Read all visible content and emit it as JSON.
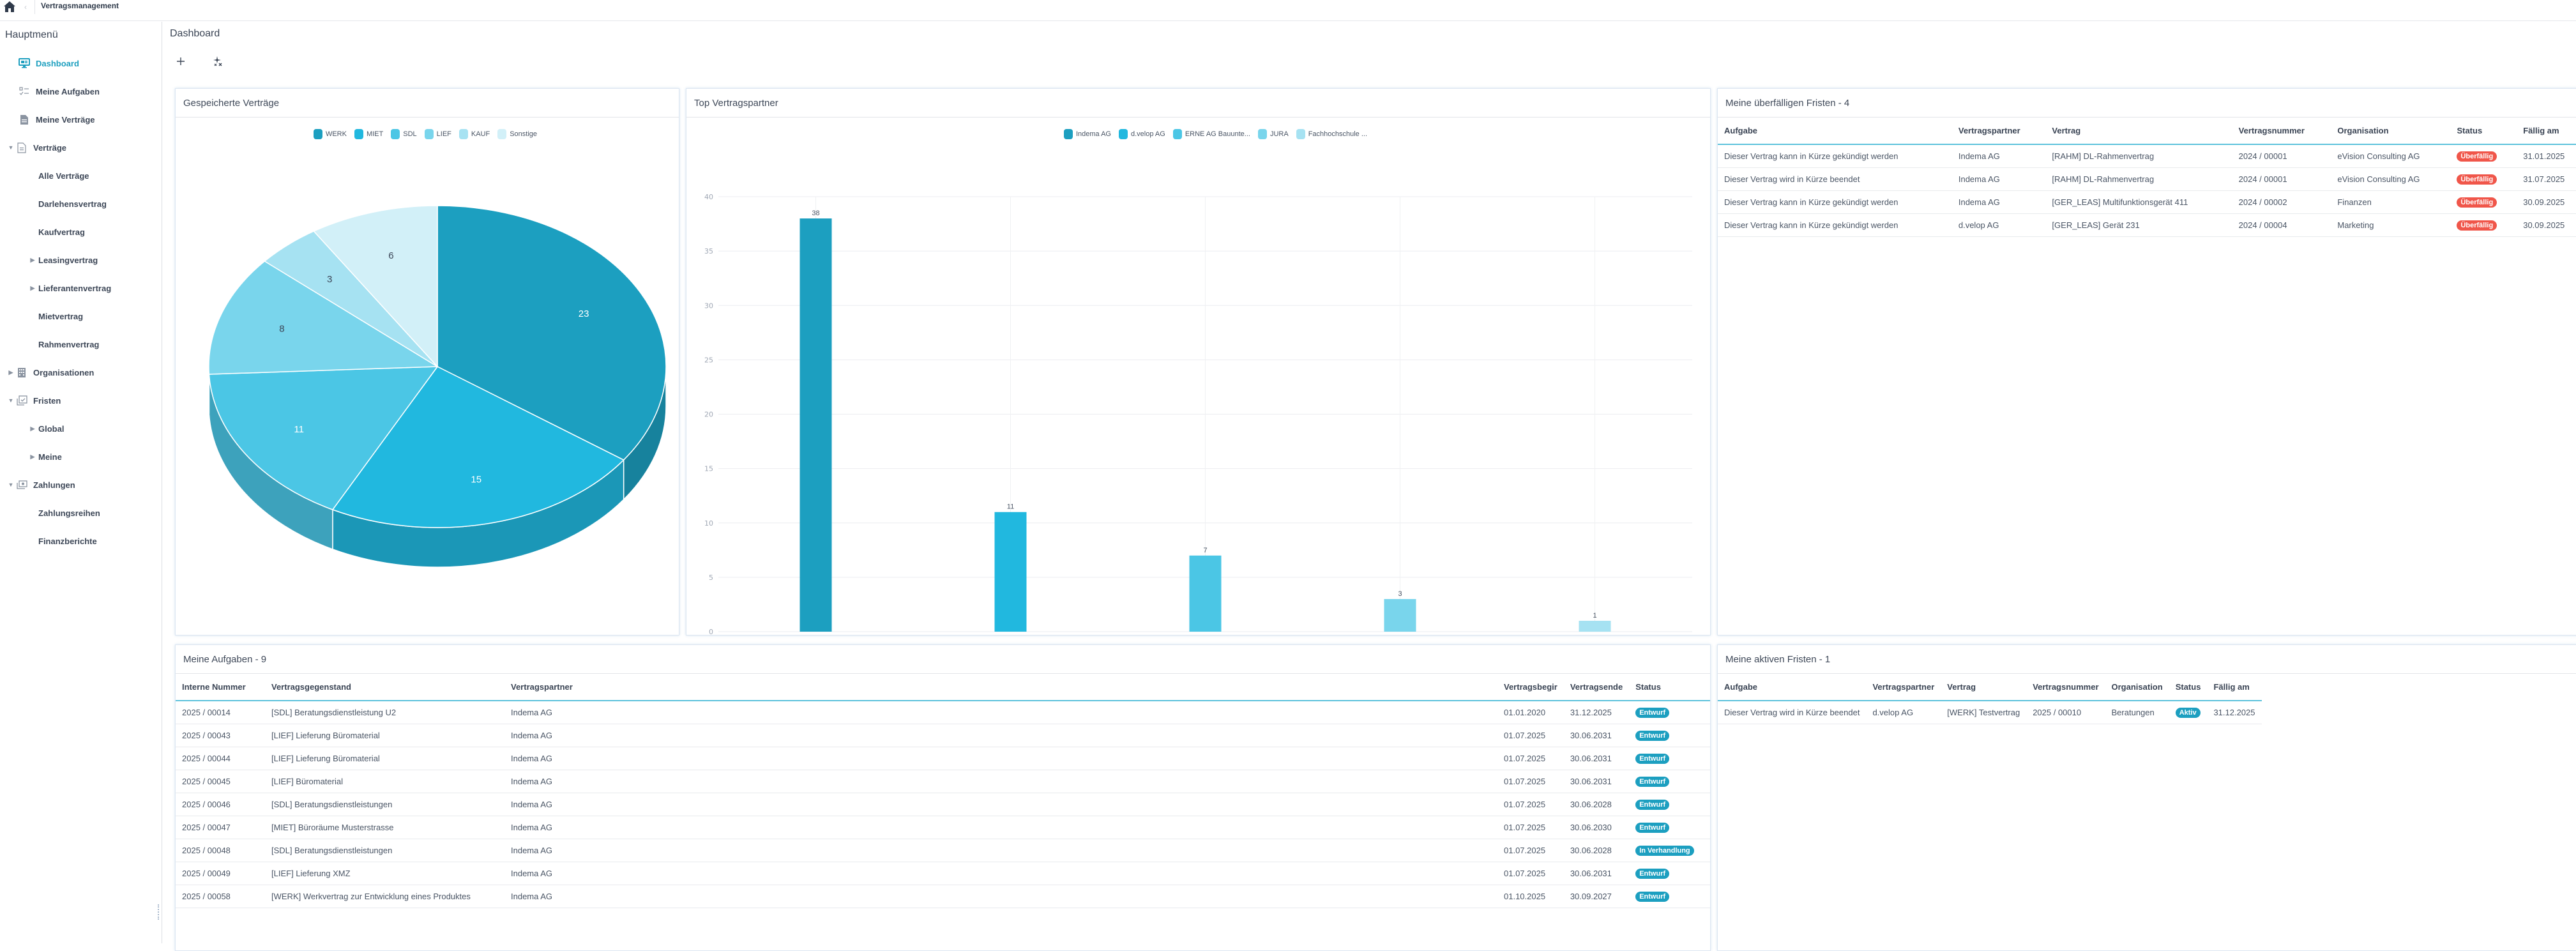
{
  "topbar": {
    "app_title": "Vertragsmanagement"
  },
  "sidebar": {
    "title": "Hauptmenü",
    "items": [
      {
        "label": "Dashboard",
        "icon": "monitor-icon",
        "active": true
      },
      {
        "label": "Meine Aufgaben",
        "icon": "checklist-icon"
      },
      {
        "label": "Meine Verträge",
        "icon": "document-filled-icon"
      },
      {
        "label": "Verträge",
        "icon": "document-outline-icon",
        "expanded": true
      },
      {
        "label": "Alle Verträge"
      },
      {
        "label": "Darlehensvertrag"
      },
      {
        "label": "Kaufvertrag"
      },
      {
        "label": "Leasingvertrag",
        "collapsed": true
      },
      {
        "label": "Lieferantenvertrag",
        "collapsed": true
      },
      {
        "label": "Mietvertrag"
      },
      {
        "label": "Rahmenvertrag"
      },
      {
        "label": "Organisationen",
        "icon": "building-icon",
        "collapsed": true
      },
      {
        "label": "Fristen",
        "icon": "calendar-check-icon",
        "expanded": true
      },
      {
        "label": "Global",
        "collapsed": true
      },
      {
        "label": "Meine",
        "collapsed": true
      },
      {
        "label": "Zahlungen",
        "icon": "money-icon",
        "expanded": true
      },
      {
        "label": "Zahlungsreihen"
      },
      {
        "label": "Finanzberichte"
      }
    ]
  },
  "main": {
    "title": "Dashboard",
    "toolbar": {
      "add_icon": "plus-icon",
      "magic_icon": "sparkle-icon"
    }
  },
  "cards": {
    "pie": {
      "title": "Gespeicherte Verträge"
    },
    "bar": {
      "title": "Top Vertragspartner"
    },
    "overdue": {
      "title": "Meine überfälligen Fristen - 4",
      "columns": [
        "Aufgabe",
        "Vertragspartner",
        "Vertrag",
        "Vertragsnummer",
        "Organisation",
        "Status",
        "Fällig am"
      ],
      "rows": [
        [
          "Dieser Vertrag kann in Kürze gekündigt werden",
          "Indema AG",
          "[RAHM] DL-Rahmenvertrag",
          "2024 / 00001",
          "eVision Consulting AG",
          "Überfällig",
          "31.01.2025"
        ],
        [
          "Dieser Vertrag wird in Kürze beendet",
          "Indema AG",
          "[RAHM] DL-Rahmenvertrag",
          "2024 / 00001",
          "eVision Consulting AG",
          "Überfällig",
          "31.07.2025"
        ],
        [
          "Dieser Vertrag kann in Kürze gekündigt werden",
          "Indema AG",
          "[GER_LEAS] Multifunktionsgerät 411",
          "2024 / 00002",
          "Finanzen",
          "Überfällig",
          "30.09.2025"
        ],
        [
          "Dieser Vertrag kann in Kürze gekündigt werden",
          "d.velop AG",
          "[GER_LEAS] Gerät 231",
          "2024 / 00004",
          "Marketing",
          "Überfällig",
          "30.09.2025"
        ]
      ]
    },
    "tasks": {
      "title": "Meine Aufgaben - 9",
      "columns": [
        "Interne Nummer",
        "Vertragsgegenstand",
        "Vertragspartner",
        "Vertragsbegir",
        "Vertragsende",
        "Status"
      ],
      "rows": [
        [
          "2025 / 00014",
          "[SDL] Beratungsdienstleistung U2",
          "Indema AG",
          "01.01.2020",
          "31.12.2025",
          "Entwurf"
        ],
        [
          "2025 / 00043",
          "[LIEF] Lieferung Büromaterial",
          "Indema AG",
          "01.07.2025",
          "30.06.2031",
          "Entwurf"
        ],
        [
          "2025 / 00044",
          "[LIEF] Lieferung Büromaterial",
          "Indema AG",
          "01.07.2025",
          "30.06.2031",
          "Entwurf"
        ],
        [
          "2025 / 00045",
          "[LIEF] Büromaterial",
          "Indema AG",
          "01.07.2025",
          "30.06.2031",
          "Entwurf"
        ],
        [
          "2025 / 00046",
          "[SDL] Beratungsdienstleistungen",
          "Indema AG",
          "01.07.2025",
          "30.06.2028",
          "Entwurf"
        ],
        [
          "2025 / 00047",
          "[MIET] Büroräume Musterstrasse",
          "Indema AG",
          "01.07.2025",
          "30.06.2030",
          "Entwurf"
        ],
        [
          "2025 / 00048",
          "[SDL] Beratungsdienstleistungen",
          "Indema AG",
          "01.07.2025",
          "30.06.2028",
          "In Verhandlung"
        ],
        [
          "2025 / 00049",
          "[LIEF] Lieferung XMZ",
          "Indema AG",
          "01.07.2025",
          "30.06.2031",
          "Entwurf"
        ],
        [
          "2025 / 00058",
          "[WERK] Werkvertrag zur Entwicklung eines Produktes",
          "Indema AG",
          "01.10.2025",
          "30.09.2027",
          "Entwurf"
        ]
      ]
    },
    "active": {
      "title": "Meine aktiven Fristen - 1",
      "columns": [
        "Aufgabe",
        "Vertragspartner",
        "Vertrag",
        "Vertragsnummer",
        "Organisation",
        "Status",
        "Fällig am"
      ],
      "rows": [
        [
          "Dieser Vertrag wird in Kürze beendet",
          "d.velop AG",
          "[WERK] Testvertrag",
          "2025 / 00010",
          "Beratungen",
          "Aktiv",
          "31.12.2025"
        ]
      ]
    }
  },
  "colors": {
    "accent": "#1d9fbf",
    "overdue": "#f0564a",
    "series": [
      "#1c9fc0",
      "#21b8df",
      "#4bc6e5",
      "#79d5ec",
      "#a6e2f2",
      "#d2f0f8"
    ]
  },
  "chart_data": [
    {
      "type": "pie",
      "title": "Gespeicherte Verträge",
      "categories": [
        "WERK",
        "MIET",
        "SDL",
        "LIEF",
        "KAUF",
        "Sonstige"
      ],
      "values": [
        23,
        15,
        11,
        8,
        3,
        6
      ],
      "legend_position": "top",
      "style": "3d"
    },
    {
      "type": "bar",
      "title": "Top Vertragspartner",
      "categories": [
        "Indema AG",
        "d.velop AG",
        "ERNE AG Bauunte...",
        "JURA",
        "Fachhochschule ..."
      ],
      "values": [
        38,
        11,
        7,
        3,
        1
      ],
      "xlabel": "",
      "ylabel": "",
      "ylim": [
        0,
        40
      ],
      "yticks": [
        0,
        5,
        10,
        15,
        20,
        25,
        30,
        35,
        40
      ],
      "grid": true,
      "legend_position": "top"
    }
  ]
}
